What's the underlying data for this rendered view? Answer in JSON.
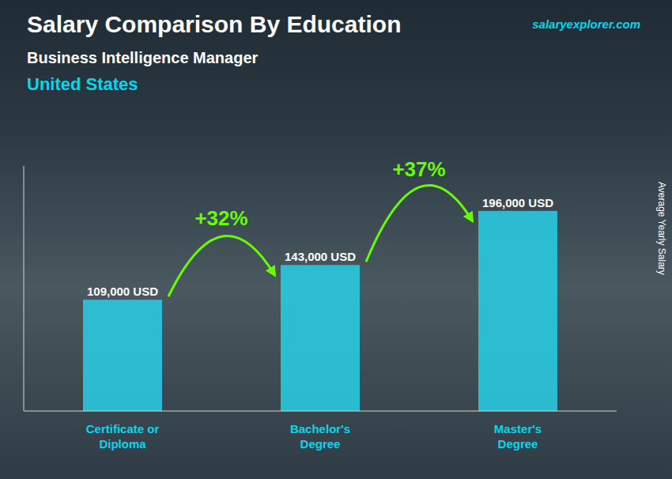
{
  "chart_data": {
    "type": "bar",
    "title": "Salary Comparison By Education",
    "subtitle": [
      "Business Intelligence Manager",
      "United States"
    ],
    "ylabel": "Average Yearly Salary",
    "categories": [
      "Certificate or\nDiploma",
      "Bachelor's\nDegree",
      "Master's\nDegree"
    ],
    "values": [
      109000,
      143000,
      196000
    ],
    "value_labels": [
      "109,000 USD",
      "143,000 USD",
      "196,000 USD"
    ],
    "color": "#29d0e8",
    "ylim": [
      0,
      240000
    ],
    "tick_labels": "x",
    "data_labels": true,
    "grid": false,
    "annotations": [
      {
        "text": "+32%",
        "from": 0,
        "to": 1,
        "color": "#66ff00"
      },
      {
        "text": "+37%",
        "from": 1,
        "to": 2,
        "color": "#66ff00"
      },
      {
        "text": "salaryexplorer.com",
        "color": "#00d8f0"
      }
    ]
  }
}
